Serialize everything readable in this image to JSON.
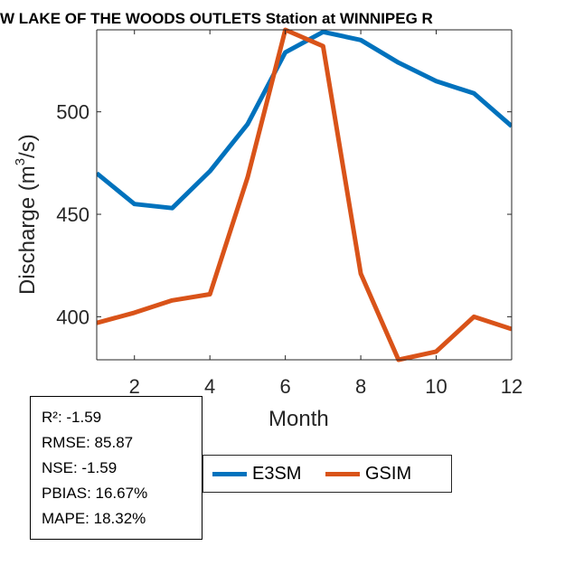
{
  "chart_data": {
    "type": "line",
    "title": "W LAKE OF THE WOODS OUTLETS  Station at  WINNIPEG R",
    "xlabel": "Month",
    "ylabel_prefix": "Discharge (m",
    "ylabel_sup": "3",
    "ylabel_suffix": "/s)",
    "xlim": [
      1,
      12
    ],
    "ylim": [
      379,
      540
    ],
    "xticks": [
      2,
      4,
      6,
      8,
      10,
      12
    ],
    "yticks": [
      400,
      450,
      500
    ],
    "grid": false,
    "x": [
      1,
      2,
      3,
      4,
      5,
      6,
      7,
      8,
      9,
      10,
      11,
      12
    ],
    "series": [
      {
        "name": "E3SM",
        "color": "#0072BD",
        "values": [
          470,
          455,
          453,
          471,
          494,
          529,
          539,
          535,
          524,
          515,
          509,
          493
        ]
      },
      {
        "name": "GSIM",
        "color": "#D95319",
        "values": [
          397,
          402,
          408,
          411,
          468,
          540,
          532,
          421,
          379,
          383,
          400,
          394
        ]
      }
    ],
    "legend_position": "bottom"
  },
  "stats": [
    "R²: -1.59",
    "RMSE: 85.87",
    "NSE: -1.59",
    "PBIAS: 16.67%",
    "MAPE: 18.32%"
  ]
}
